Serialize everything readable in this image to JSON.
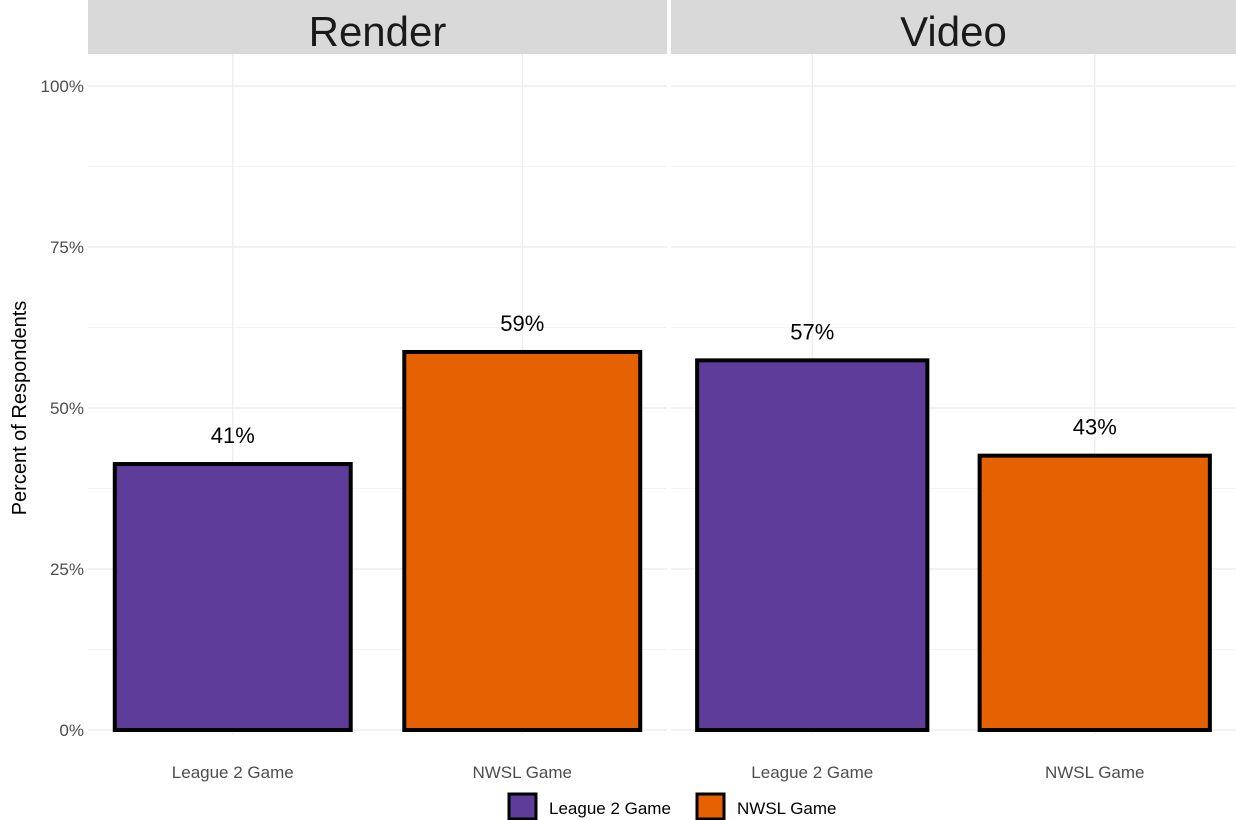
{
  "chart_data": {
    "type": "bar",
    "ylabel": "Percent of Respondents",
    "ylim": [
      0,
      100
    ],
    "y_ticks": [
      "0%",
      "25%",
      "50%",
      "75%",
      "100%"
    ],
    "y_tick_values": [
      0,
      25,
      50,
      75,
      100
    ],
    "grid": true,
    "legend_position": "bottom",
    "categories": [
      "League 2 Game",
      "NWSL Game"
    ],
    "colors": {
      "League 2 Game": "#5e3c99",
      "NWSL Game": "#e66101"
    },
    "panels": [
      {
        "title": "Render",
        "bars": [
          {
            "category": "League 2 Game",
            "value": 41.3,
            "label": "41%"
          },
          {
            "category": "NWSL Game",
            "value": 58.7,
            "label": "59%"
          }
        ]
      },
      {
        "title": "Video",
        "bars": [
          {
            "category": "League 2 Game",
            "value": 57.4,
            "label": "57%"
          },
          {
            "category": "NWSL Game",
            "value": 42.6,
            "label": "43%"
          }
        ]
      }
    ],
    "legend": [
      "League 2 Game",
      "NWSL Game"
    ]
  }
}
